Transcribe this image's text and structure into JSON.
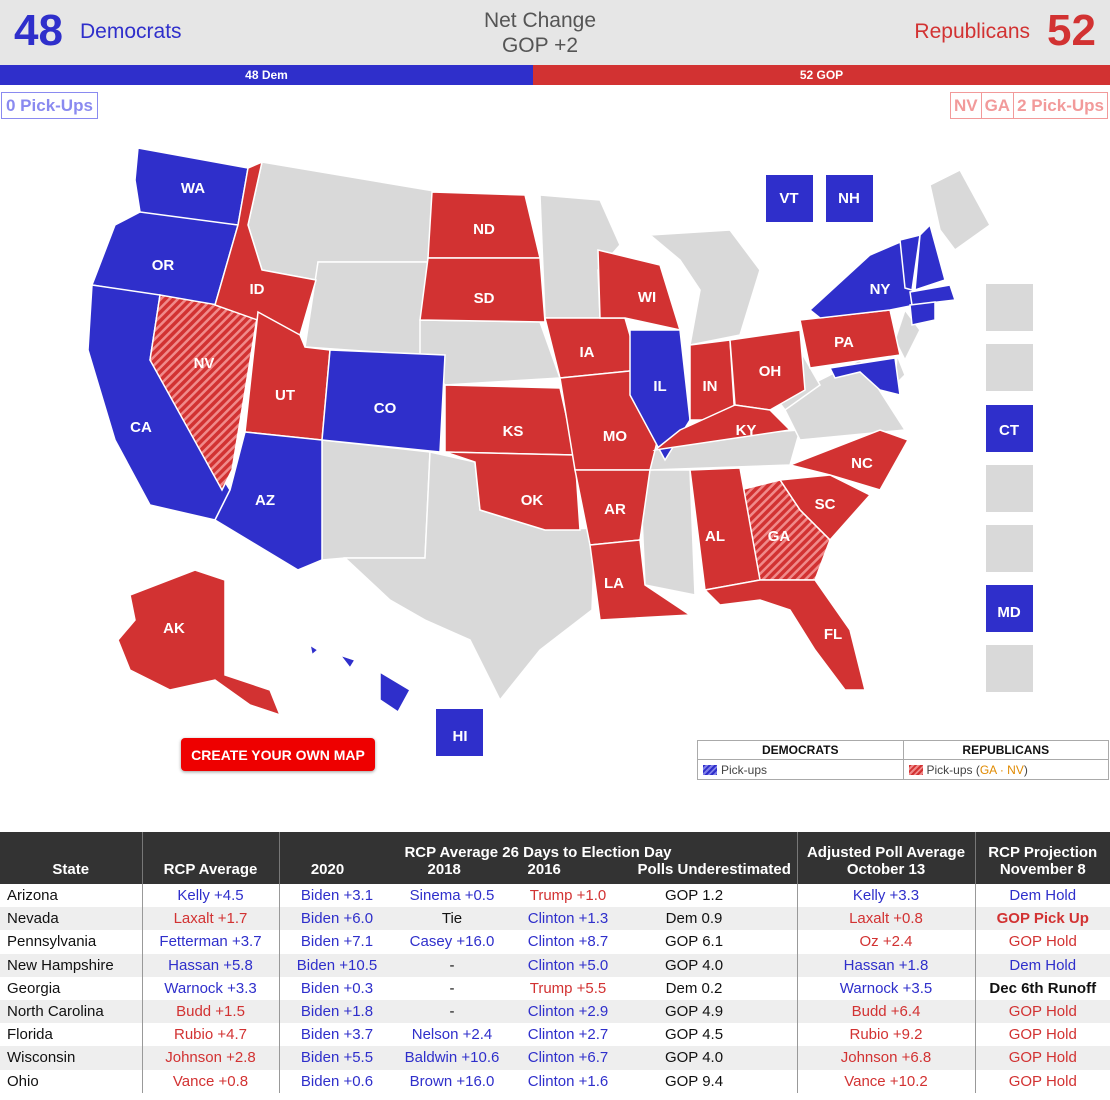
{
  "header": {
    "dem_count": "48",
    "dem_label": "Democrats",
    "net_change_label": "Net Change",
    "net_change_value": "GOP +2",
    "rep_label": "Republicans",
    "rep_count": "52"
  },
  "seat_bar": {
    "dem_label": "48 Dem",
    "rep_label": "52 GOP",
    "dem_seats": 48,
    "rep_seats": 52
  },
  "pickups": {
    "dem_label": "0 Pick-Ups",
    "rep_states": [
      "NV",
      "GA"
    ],
    "rep_label": "2 Pick-Ups"
  },
  "colors": {
    "dem": "#2f2fcb",
    "rep": "#d23232",
    "no_race": "#d9d9d9",
    "dem_light": "#8a8af0",
    "rep_light": "#f29a9a"
  },
  "map": {
    "states": [
      {
        "abbr": "WA",
        "party": "dem"
      },
      {
        "abbr": "OR",
        "party": "dem"
      },
      {
        "abbr": "CA",
        "party": "dem"
      },
      {
        "abbr": "NV",
        "party": "rep-pickup"
      },
      {
        "abbr": "ID",
        "party": "rep"
      },
      {
        "abbr": "UT",
        "party": "rep"
      },
      {
        "abbr": "AZ",
        "party": "dem"
      },
      {
        "abbr": "CO",
        "party": "dem"
      },
      {
        "abbr": "ND",
        "party": "rep"
      },
      {
        "abbr": "SD",
        "party": "rep"
      },
      {
        "abbr": "KS",
        "party": "rep"
      },
      {
        "abbr": "OK",
        "party": "rep"
      },
      {
        "abbr": "IA",
        "party": "rep"
      },
      {
        "abbr": "MO",
        "party": "rep"
      },
      {
        "abbr": "AR",
        "party": "rep"
      },
      {
        "abbr": "LA",
        "party": "rep"
      },
      {
        "abbr": "WI",
        "party": "rep"
      },
      {
        "abbr": "IL",
        "party": "dem"
      },
      {
        "abbr": "IN",
        "party": "rep"
      },
      {
        "abbr": "OH",
        "party": "rep"
      },
      {
        "abbr": "KY",
        "party": "rep"
      },
      {
        "abbr": "PA",
        "party": "rep"
      },
      {
        "abbr": "NY",
        "party": "dem"
      },
      {
        "abbr": "NC",
        "party": "rep"
      },
      {
        "abbr": "SC",
        "party": "rep"
      },
      {
        "abbr": "GA",
        "party": "rep-pickup"
      },
      {
        "abbr": "AL",
        "party": "rep"
      },
      {
        "abbr": "FL",
        "party": "rep"
      },
      {
        "abbr": "AK",
        "party": "rep"
      },
      {
        "abbr": "HI",
        "party": "dem"
      },
      {
        "abbr": "VT",
        "party": "dem"
      },
      {
        "abbr": "NH",
        "party": "dem"
      },
      {
        "abbr": "CT",
        "party": "dem"
      },
      {
        "abbr": "MD",
        "party": "dem"
      }
    ]
  },
  "create_button": "CREATE YOUR OWN MAP",
  "legend": {
    "dem_head": "DEMOCRATS",
    "rep_head": "REPUBLICANS",
    "dem_row": "Pick-ups",
    "rep_row": "Pick-ups (",
    "rep_row_states": "GA · NV",
    "rep_row_close": ")"
  },
  "table": {
    "headers": {
      "state": "State",
      "rcp_average": "RCP Average",
      "group_title": "RCP Average 26 Days to Election Day",
      "y2020": "2020",
      "y2018": "2018",
      "y2016": "2016",
      "underestimated": "Polls Underestimated",
      "adjusted_line1": "Adjusted Poll Average",
      "adjusted_line2": "October 13",
      "projection_line1": "RCP Projection",
      "projection_line2": "November 8"
    },
    "rows": [
      {
        "state": "Arizona",
        "rcp": "Kelly +4.5",
        "rcp_c": "dem",
        "y2020": "Biden +3.1",
        "y2020_c": "dem",
        "y2018": "Sinema +0.5",
        "y2018_c": "dem",
        "y2016": "Trump +1.0",
        "y2016_c": "rep",
        "under": "GOP 1.2",
        "adj": "Kelly +3.3",
        "adj_c": "dem",
        "proj": "Dem Hold",
        "proj_c": "dem"
      },
      {
        "state": "Nevada",
        "rcp": "Laxalt +1.7",
        "rcp_c": "rep",
        "y2020": "Biden +6.0",
        "y2020_c": "dem",
        "y2018": "Tie",
        "y2018_c": "neutral",
        "y2016": "Clinton +1.3",
        "y2016_c": "dem",
        "under": "Dem 0.9",
        "adj": "Laxalt +0.8",
        "adj_c": "rep",
        "proj": "GOP Pick Up",
        "proj_c": "rep-bold"
      },
      {
        "state": "Pennsylvania",
        "rcp": "Fetterman +3.7",
        "rcp_c": "dem",
        "y2020": "Biden +7.1",
        "y2020_c": "dem",
        "y2018": "Casey +16.0",
        "y2018_c": "dem",
        "y2016": "Clinton +8.7",
        "y2016_c": "dem",
        "under": "GOP 6.1",
        "adj": "Oz +2.4",
        "adj_c": "rep",
        "proj": "GOP Hold",
        "proj_c": "rep"
      },
      {
        "state": "New Hampshire",
        "rcp": "Hassan +5.8",
        "rcp_c": "dem",
        "y2020": "Biden +10.5",
        "y2020_c": "dem",
        "y2018": "-",
        "y2018_c": "neutral",
        "y2016": "Clinton +5.0",
        "y2016_c": "dem",
        "under": "GOP 4.0",
        "adj": "Hassan +1.8",
        "adj_c": "dem",
        "proj": "Dem Hold",
        "proj_c": "dem"
      },
      {
        "state": "Georgia",
        "rcp": "Warnock +3.3",
        "rcp_c": "dem",
        "y2020": "Biden +0.3",
        "y2020_c": "dem",
        "y2018": "-",
        "y2018_c": "neutral",
        "y2016": "Trump +5.5",
        "y2016_c": "rep",
        "under": "Dem 0.2",
        "adj": "Warnock +3.5",
        "adj_c": "dem",
        "proj": "Dec 6th Runoff",
        "proj_c": "bold"
      },
      {
        "state": "North Carolina",
        "rcp": "Budd +1.5",
        "rcp_c": "rep",
        "y2020": "Biden +1.8",
        "y2020_c": "dem",
        "y2018": "-",
        "y2018_c": "neutral",
        "y2016": "Clinton +2.9",
        "y2016_c": "dem",
        "under": "GOP 4.9",
        "adj": "Budd +6.4",
        "adj_c": "rep",
        "proj": "GOP Hold",
        "proj_c": "rep"
      },
      {
        "state": "Florida",
        "rcp": "Rubio +4.7",
        "rcp_c": "rep",
        "y2020": "Biden +3.7",
        "y2020_c": "dem",
        "y2018": "Nelson +2.4",
        "y2018_c": "dem",
        "y2016": "Clinton +2.7",
        "y2016_c": "dem",
        "under": "GOP 4.5",
        "adj": "Rubio +9.2",
        "adj_c": "rep",
        "proj": "GOP Hold",
        "proj_c": "rep"
      },
      {
        "state": "Wisconsin",
        "rcp": "Johnson +2.8",
        "rcp_c": "rep",
        "y2020": "Biden +5.5",
        "y2020_c": "dem",
        "y2018": "Baldwin +10.6",
        "y2018_c": "dem",
        "y2016": "Clinton +6.7",
        "y2016_c": "dem",
        "under": "GOP 4.0",
        "adj": "Johnson +6.8",
        "adj_c": "rep",
        "proj": "GOP Hold",
        "proj_c": "rep"
      },
      {
        "state": "Ohio",
        "rcp": "Vance +0.8",
        "rcp_c": "rep",
        "y2020": "Biden +0.6",
        "y2020_c": "dem",
        "y2018": "Brown +16.0",
        "y2018_c": "dem",
        "y2016": "Clinton +1.6",
        "y2016_c": "dem",
        "under": "GOP 9.4",
        "adj": "Vance +10.2",
        "adj_c": "rep",
        "proj": "GOP Hold",
        "proj_c": "rep"
      }
    ]
  }
}
